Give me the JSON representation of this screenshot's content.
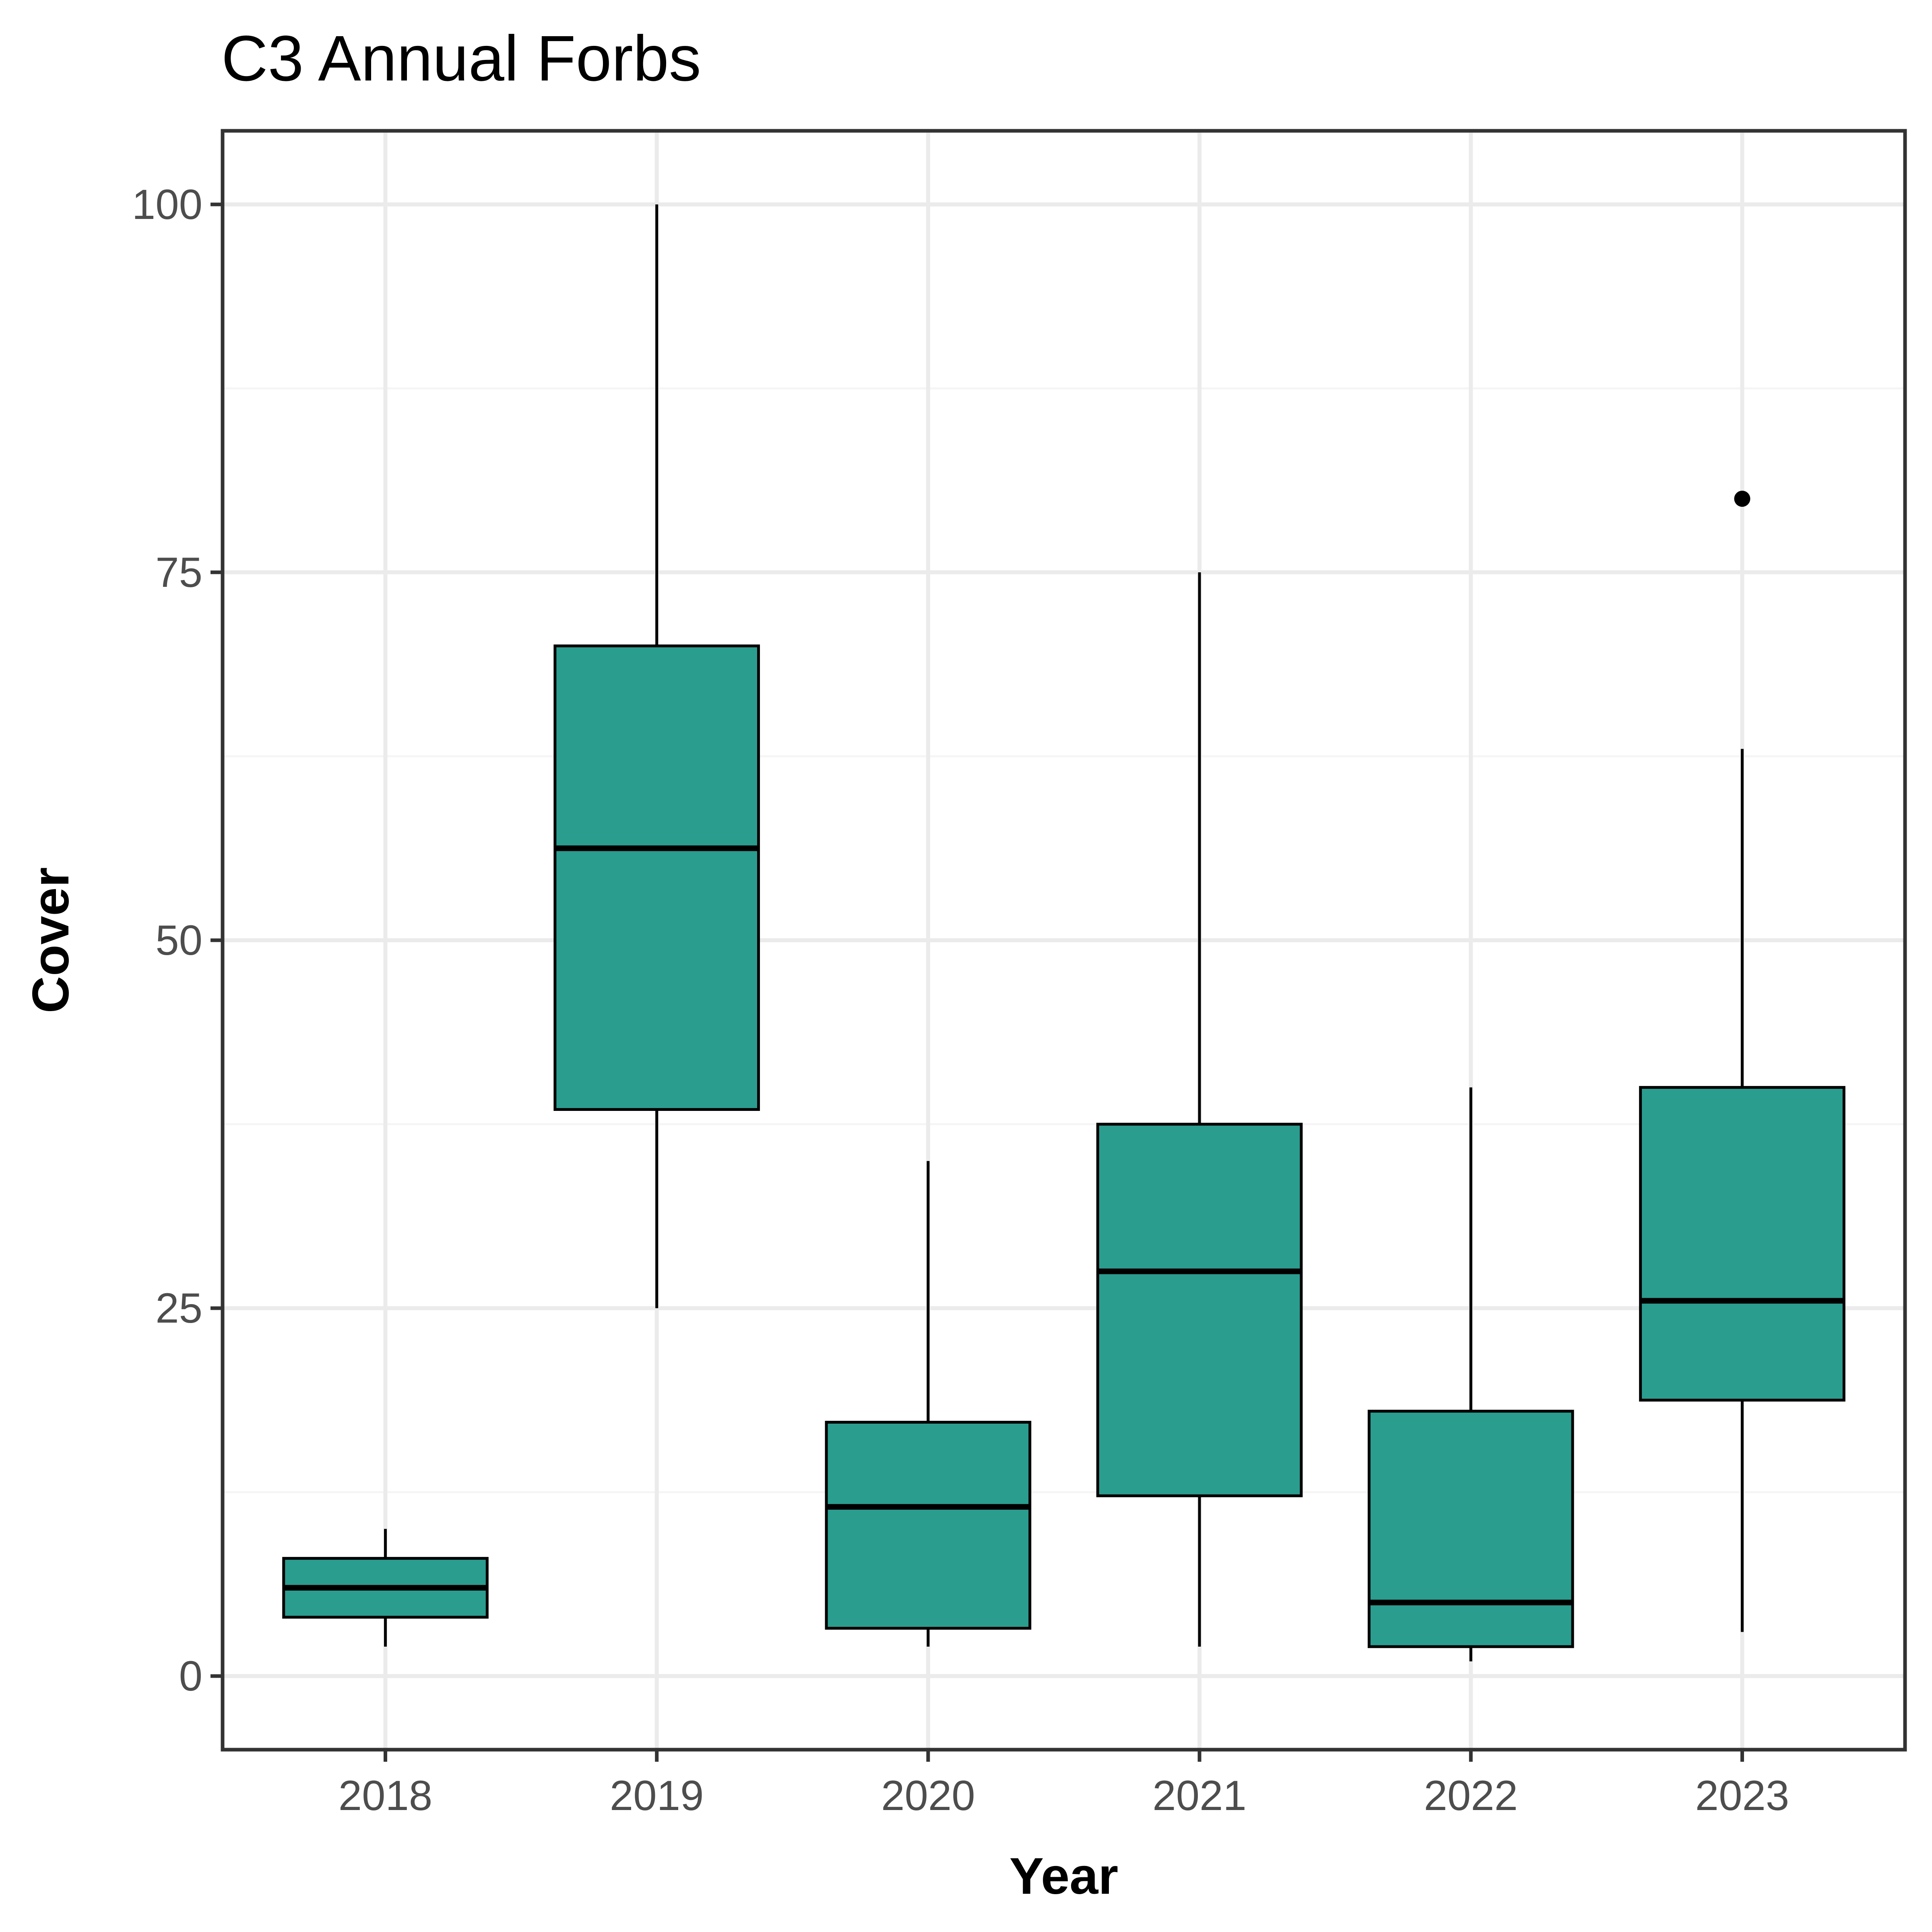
{
  "chart_data": {
    "type": "boxplot",
    "title": "C3 Annual Forbs",
    "xlabel": "Year",
    "ylabel": "Cover",
    "categories": [
      "2018",
      "2019",
      "2020",
      "2021",
      "2022",
      "2023"
    ],
    "ylim": [
      -5,
      105
    ],
    "yticks": [
      0,
      25,
      50,
      75,
      100
    ],
    "grid": true,
    "legend": "none",
    "fill_color": "#2a9d8f",
    "series": [
      {
        "category": "2018",
        "whisker_low": 2,
        "q1": 4,
        "median": 6,
        "q3": 8,
        "whisker_high": 10,
        "outliers": []
      },
      {
        "category": "2019",
        "whisker_low": 25,
        "q1": 38.5,
        "median": 56.25,
        "q3": 70,
        "whisker_high": 100,
        "outliers": []
      },
      {
        "category": "2020",
        "whisker_low": 2,
        "q1": 3.25,
        "median": 11.5,
        "q3": 17.25,
        "whisker_high": 35,
        "outliers": []
      },
      {
        "category": "2021",
        "whisker_low": 2,
        "q1": 12.25,
        "median": 27.5,
        "q3": 37.5,
        "whisker_high": 75,
        "outliers": []
      },
      {
        "category": "2022",
        "whisker_low": 1,
        "q1": 2,
        "median": 5,
        "q3": 18,
        "whisker_high": 40,
        "outliers": []
      },
      {
        "category": "2023",
        "whisker_low": 3,
        "q1": 18.75,
        "median": 25.5,
        "q3": 40,
        "whisker_high": 63,
        "outliers": [
          80
        ]
      }
    ]
  }
}
